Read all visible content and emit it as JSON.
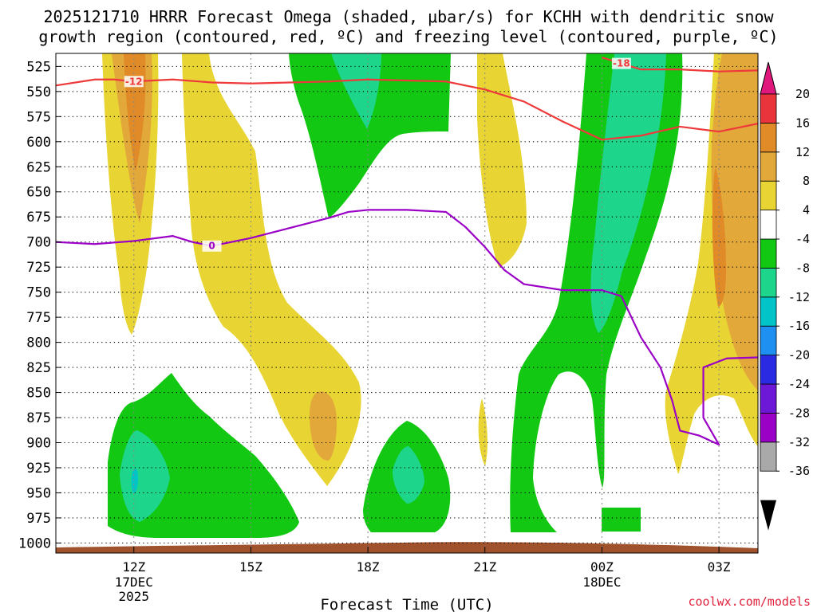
{
  "chart_data": {
    "type": "heatmap",
    "title_line1": "2025121710 HRRR Forecast Omega (shaded, μbar/s) for KCHH with dendritic snow",
    "title_line2": "growth region (contoured, red, ºC) and freezing level (contoured, purple, ºC)",
    "xlabel": "Forecast Time (UTC)",
    "ylabel": "",
    "y_ticks": [
      "525",
      "550",
      "575",
      "600",
      "625",
      "650",
      "675",
      "700",
      "725",
      "750",
      "775",
      "800",
      "825",
      "850",
      "875",
      "900",
      "925",
      "950",
      "975",
      "1000"
    ],
    "x_ticks": [
      {
        "label": "12Z",
        "sub1": "17DEC",
        "sub2": "2025",
        "hour": 12
      },
      {
        "label": "15Z",
        "sub1": "",
        "sub2": "",
        "hour": 15
      },
      {
        "label": "18Z",
        "sub1": "",
        "sub2": "",
        "hour": 18
      },
      {
        "label": "21Z",
        "sub1": "",
        "sub2": "",
        "hour": 21
      },
      {
        "label": "00Z",
        "sub1": "18DEC",
        "sub2": "",
        "hour": 24
      },
      {
        "label": "03Z",
        "sub1": "",
        "sub2": "",
        "hour": 27
      }
    ],
    "xlim_hours": [
      10.0,
      28.0
    ],
    "ylim_hpa": [
      512,
      1010
    ],
    "colorbar": {
      "levels": [
        -36,
        -32,
        -28,
        -24,
        -20,
        -16,
        -12,
        -8,
        -4,
        4,
        8,
        12,
        16,
        20
      ],
      "tick_labels": [
        "20",
        "16",
        "12",
        "8",
        "4",
        "-4",
        "-8",
        "-12",
        "-16",
        "-20",
        "-24",
        "-28",
        "-32",
        "-36"
      ],
      "colors": [
        "#000000",
        "#a9a9a9",
        "#9a00c6",
        "#6c18d6",
        "#2a2ae2",
        "#1e90f2",
        "#00c4c8",
        "#1ed58c",
        "#12c812",
        "#ffffff",
        "#e8d534",
        "#e2a93a",
        "#e08a28",
        "#e8343a",
        "#e0187e"
      ]
    },
    "series": [
      {
        "name": "Dendritic growth region -12C",
        "color": "#ee3a3a",
        "label": "-12",
        "x": [
          10.0,
          11.0,
          11.5,
          12.0,
          13.0,
          14.0,
          15.0,
          16.0,
          17.0,
          18.0,
          19.0,
          20.0,
          21.0,
          22.0,
          23.0,
          24.0,
          25.0,
          26.0,
          27.0,
          28.0
        ],
        "y": [
          544,
          538,
          538,
          540,
          538,
          541,
          542,
          541,
          540,
          538,
          539,
          540,
          548,
          560,
          580,
          598,
          594,
          585,
          590,
          582
        ]
      },
      {
        "name": "Dendritic growth region -18C",
        "color": "#ee3a3a",
        "label": "-18",
        "x": [
          24.0,
          24.5,
          25.0,
          26.0,
          27.0,
          28.0
        ],
        "y": [
          516,
          522,
          528,
          528,
          530,
          529
        ]
      },
      {
        "name": "Freezing level 0C",
        "color": "#9a00c6",
        "label": "0",
        "x": [
          10.0,
          11.0,
          12.0,
          13.0,
          13.5,
          14.0,
          15.0,
          16.0,
          17.0,
          17.5,
          18.0,
          19.0,
          20.0,
          20.5,
          21.0,
          21.5,
          22.0,
          23.0,
          24.0,
          24.5,
          25.0,
          25.5,
          25.8,
          26.0,
          26.5,
          27.0,
          26.6,
          26.6,
          27.2,
          28.0
        ],
        "y": [
          700,
          702,
          699,
          694,
          700,
          704,
          696,
          686,
          676,
          670,
          668,
          668,
          670,
          685,
          705,
          728,
          742,
          748,
          748,
          754,
          795,
          825,
          858,
          888,
          893,
          902,
          875,
          825,
          816,
          815
        ]
      }
    ],
    "filled_regions": [
      {
        "name": "omega 4 to 8 (rising)",
        "color": "#e8d534"
      },
      {
        "name": "omega 8 to 12",
        "color": "#e2a93a"
      },
      {
        "name": "omega 12 to 16",
        "color": "#e08a28"
      },
      {
        "name": "omega -8 to -4 (sinking)",
        "color": "#12c812"
      },
      {
        "name": "omega -12 to -8",
        "color": "#1ed58c"
      },
      {
        "name": "omega -16 to -12",
        "color": "#00c4c8"
      },
      {
        "name": "terrain",
        "color": "#a0522d"
      }
    ]
  },
  "credit": "coolwx.com/models"
}
